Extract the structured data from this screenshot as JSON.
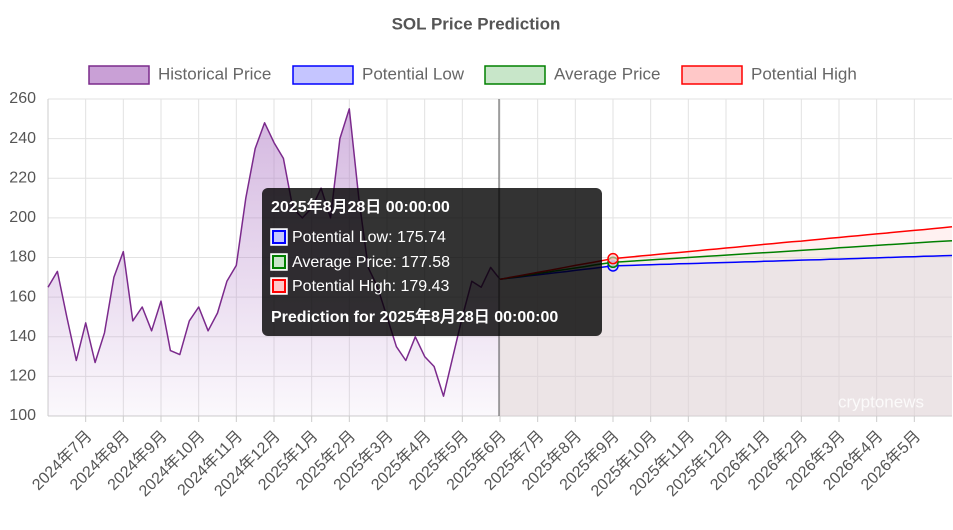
{
  "chart_data": {
    "type": "line",
    "title": "SOL Price Prediction",
    "categories": [
      null,
      null,
      null,
      null,
      "2024年7月",
      null,
      null,
      null,
      "2024年8月",
      null,
      null,
      null,
      "2024年9月",
      null,
      null,
      null,
      "2024年10月",
      null,
      null,
      null,
      "2024年11月",
      null,
      null,
      null,
      "2024年12月",
      null,
      null,
      null,
      "2025年1月",
      null,
      null,
      null,
      "2025年2月",
      null,
      null,
      null,
      "2025年3月",
      null,
      null,
      null,
      "2025年4月",
      null,
      null,
      null,
      "2025年5月",
      null,
      null,
      null,
      "2025年6月",
      null,
      null,
      null,
      "2025年7月",
      null,
      null,
      null,
      "2025年8月",
      null,
      null,
      null,
      "2025年9月",
      null,
      null,
      null,
      "2025年10月",
      null,
      null,
      null,
      "2025年11月",
      null,
      null,
      null,
      "2025年12月",
      null,
      null,
      null,
      "2026年1月",
      null,
      null,
      null,
      "2026年2月",
      null,
      null,
      null,
      "2026年3月",
      null,
      null,
      null,
      "2026年4月",
      null,
      null,
      null,
      "2026年5月",
      null,
      null,
      null,
      null
    ],
    "series": [
      {
        "name": "Historical Price",
        "color": "#7b2a8c",
        "fill": "#c9a0d6",
        "values": [
          165,
          173,
          150,
          128,
          147,
          127,
          142,
          170,
          183,
          148,
          155,
          143,
          158,
          133,
          131,
          148,
          155,
          143,
          152,
          168,
          176,
          210,
          235,
          248,
          238,
          230,
          205,
          200,
          205,
          215,
          200,
          240,
          255,
          210,
          175,
          165,
          150,
          135,
          128,
          140,
          130,
          125,
          110,
          130,
          150,
          168,
          165,
          175,
          169,
          null,
          null,
          null,
          null,
          null,
          null,
          null,
          null,
          null,
          null,
          null,
          null,
          null,
          null,
          null,
          null,
          null,
          null,
          null,
          null,
          null,
          null,
          null,
          null,
          null,
          null,
          null,
          null,
          null,
          null,
          null,
          null,
          null,
          null,
          null,
          null,
          null,
          null,
          null,
          null,
          null,
          null,
          null,
          null,
          null,
          null,
          null,
          null
        ]
      },
      {
        "name": "Potential Low",
        "color": "#0000ff",
        "fill": "#c5c5ff",
        "values": [
          null,
          null,
          null,
          null,
          null,
          null,
          null,
          null,
          null,
          null,
          null,
          null,
          null,
          null,
          null,
          null,
          null,
          null,
          null,
          null,
          null,
          null,
          null,
          null,
          null,
          null,
          null,
          null,
          null,
          null,
          null,
          null,
          null,
          null,
          null,
          null,
          null,
          null,
          null,
          null,
          null,
          null,
          null,
          null,
          null,
          null,
          null,
          null,
          169,
          169.6,
          170.1,
          170.7,
          171.2,
          171.8,
          172.4,
          172.9,
          173.5,
          174.1,
          174.6,
          175.2,
          175.74,
          175.9,
          176.0,
          176.2,
          176.3,
          176.5,
          176.6,
          176.8,
          176.9,
          177.0,
          177.2,
          177.3,
          177.5,
          177.6,
          177.8,
          177.9,
          178.1,
          178.2,
          178.4,
          178.5,
          178.7,
          178.8,
          178.9,
          179.1,
          179.2,
          179.4,
          179.5,
          179.7,
          179.8,
          180.0,
          180.1,
          180.3,
          180.4,
          180.6,
          180.7,
          180.9,
          181.0
        ]
      },
      {
        "name": "Average Price",
        "color": "#008000",
        "fill": "#c8e6c9",
        "values": [
          null,
          null,
          null,
          null,
          null,
          null,
          null,
          null,
          null,
          null,
          null,
          null,
          null,
          null,
          null,
          null,
          null,
          null,
          null,
          null,
          null,
          null,
          null,
          null,
          null,
          null,
          null,
          null,
          null,
          null,
          null,
          null,
          null,
          null,
          null,
          null,
          null,
          null,
          null,
          null,
          null,
          null,
          null,
          null,
          null,
          null,
          null,
          null,
          169,
          169.7,
          170.4,
          171.1,
          171.9,
          172.6,
          173.3,
          174.0,
          174.7,
          175.4,
          176.2,
          176.9,
          177.58,
          177.9,
          178.2,
          178.5,
          178.8,
          179.1,
          179.4,
          179.7,
          180.0,
          180.3,
          180.6,
          180.9,
          181.2,
          181.5,
          181.8,
          182.1,
          182.4,
          182.7,
          183.0,
          183.3,
          183.6,
          183.9,
          184.2,
          184.5,
          184.9,
          185.2,
          185.5,
          185.8,
          186.1,
          186.4,
          186.7,
          187.0,
          187.3,
          187.6,
          187.9,
          188.2,
          188.5
        ]
      },
      {
        "name": "Potential High",
        "color": "#ff0000",
        "fill": "#ffc8c8",
        "values": [
          null,
          null,
          null,
          null,
          null,
          null,
          null,
          null,
          null,
          null,
          null,
          null,
          null,
          null,
          null,
          null,
          null,
          null,
          null,
          null,
          null,
          null,
          null,
          null,
          null,
          null,
          null,
          null,
          null,
          null,
          null,
          null,
          null,
          null,
          null,
          null,
          null,
          null,
          null,
          null,
          null,
          null,
          null,
          null,
          null,
          null,
          null,
          null,
          169,
          169.9,
          170.7,
          171.6,
          172.5,
          173.3,
          174.2,
          175.1,
          176.0,
          176.8,
          177.7,
          178.6,
          179.43,
          179.9,
          180.3,
          180.8,
          181.2,
          181.7,
          182.1,
          182.5,
          183.0,
          183.4,
          183.9,
          184.3,
          184.8,
          185.2,
          185.7,
          186.1,
          186.6,
          187.0,
          187.5,
          187.9,
          188.3,
          188.8,
          189.2,
          189.7,
          190.1,
          190.6,
          191.0,
          191.5,
          191.9,
          192.3,
          192.8,
          193.2,
          193.7,
          194.1,
          194.6,
          195.0,
          195.5
        ]
      }
    ],
    "ylim": [
      100,
      260
    ],
    "yticks": [
      100,
      120,
      140,
      160,
      180,
      200,
      220,
      240,
      260
    ],
    "grid": true,
    "legend": "top",
    "tooltip": {
      "title": "2025年8月28日 00:00:00",
      "lines": [
        "Potential Low: 175.74",
        "Average Price: 177.58",
        "Potential High: 179.43"
      ],
      "footer": "Prediction for 2025年8月28日 00:00:00"
    },
    "watermark": "cryptonews"
  }
}
